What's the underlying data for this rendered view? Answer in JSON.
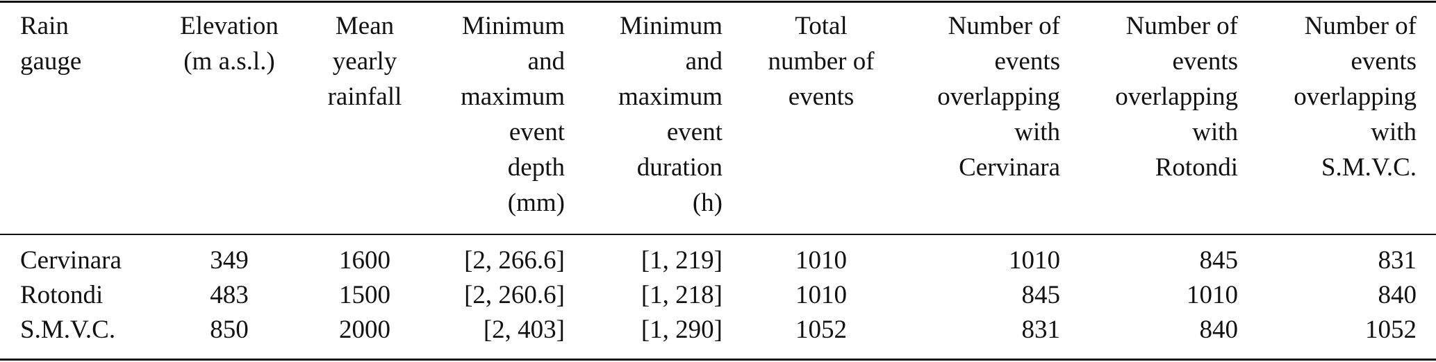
{
  "table": {
    "header": [
      [
        "Rain",
        "gauge"
      ],
      [
        "Elevation",
        "(m a.s.l.)"
      ],
      [
        "Mean",
        "yearly",
        "rainfall"
      ],
      [
        "Minimum",
        "and",
        "maximum",
        "event",
        "depth",
        "(mm)"
      ],
      [
        "Minimum",
        "and",
        "maximum",
        "event",
        "duration",
        "(h)"
      ],
      [
        "Total",
        "number of",
        "events"
      ],
      [
        "Number of",
        "events",
        "overlapping",
        "with",
        "Cervinara"
      ],
      [
        "Number of",
        "events",
        "overlapping",
        "with",
        "Rotondi"
      ],
      [
        "Number of",
        "events",
        "overlapping",
        "with",
        "S.M.V.C."
      ]
    ],
    "rows": [
      [
        "Cervinara",
        349,
        1600,
        "[2, 266.6]",
        "[1, 219]",
        1010,
        1010,
        845,
        831
      ],
      [
        "Rotondi",
        483,
        1500,
        "[2, 260.6]",
        "[1, 218]",
        1010,
        845,
        1010,
        840
      ],
      [
        "S.M.V.C.",
        850,
        2000,
        "[2, 403]",
        "[1, 290]",
        1052,
        831,
        840,
        1052
      ]
    ]
  }
}
